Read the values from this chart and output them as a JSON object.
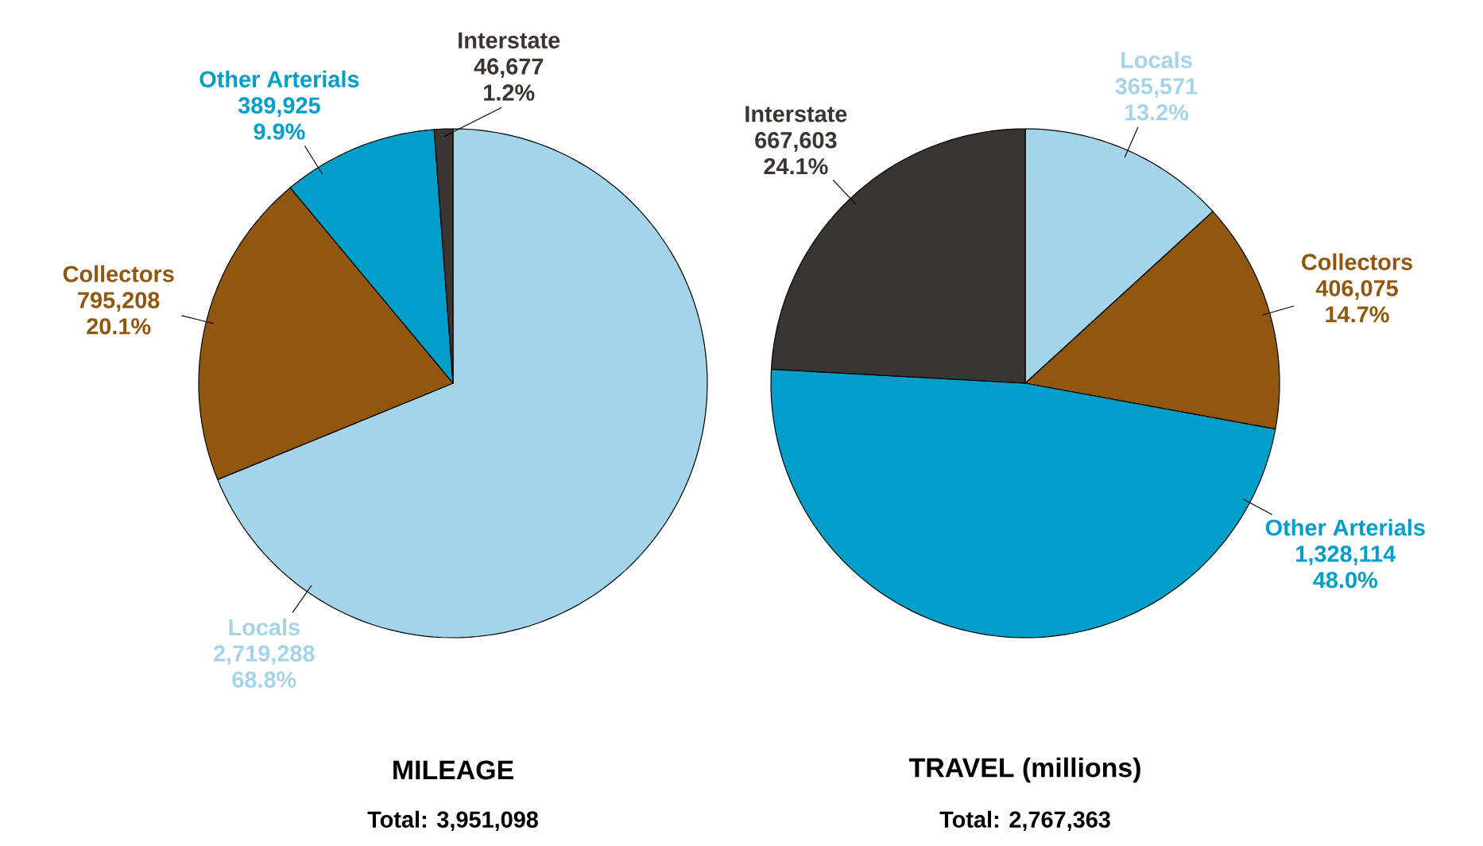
{
  "chart_data": [
    {
      "type": "pie",
      "title": "MILEAGE",
      "subtitle": "Total:  3,951,098",
      "categories": [
        "Locals",
        "Collectors",
        "Other Arterials",
        "Interstate"
      ],
      "values": [
        2719288,
        795208,
        389925,
        46677
      ],
      "colors": [
        "#a3d4ea",
        "#92570f",
        "#009ec9",
        "#3a3532"
      ],
      "value_labels": [
        "2,719,288",
        "795,208",
        "389,925",
        "46,677"
      ],
      "annotations": [
        {
          "text": "68.8%",
          "x": "Locals"
        },
        {
          "text": "20.1%",
          "x": "Collectors"
        },
        {
          "text": "9.9%",
          "x": "Other Arterials"
        },
        {
          "text": "1.2%",
          "x": "Interstate"
        }
      ]
    },
    {
      "type": "pie",
      "title": "TRAVEL (millions)",
      "subtitle": "Total:  2,767,363",
      "categories": [
        "Locals",
        "Collectors",
        "Other Arterials",
        "Interstate"
      ],
      "values": [
        365571,
        406075,
        1328114,
        667603
      ],
      "colors": [
        "#a3d4ea",
        "#92570f",
        "#009ec9",
        "#3a3532"
      ],
      "value_labels": [
        "365,571",
        "406,075",
        "1,328,114",
        "667,603"
      ],
      "annotations": [
        {
          "text": "13.2%",
          "x": "Locals"
        },
        {
          "text": "14.7%",
          "x": "Collectors"
        },
        {
          "text": "48.0%",
          "x": "Other Arterials"
        },
        {
          "text": "24.1%",
          "x": "Interstate"
        }
      ]
    }
  ]
}
